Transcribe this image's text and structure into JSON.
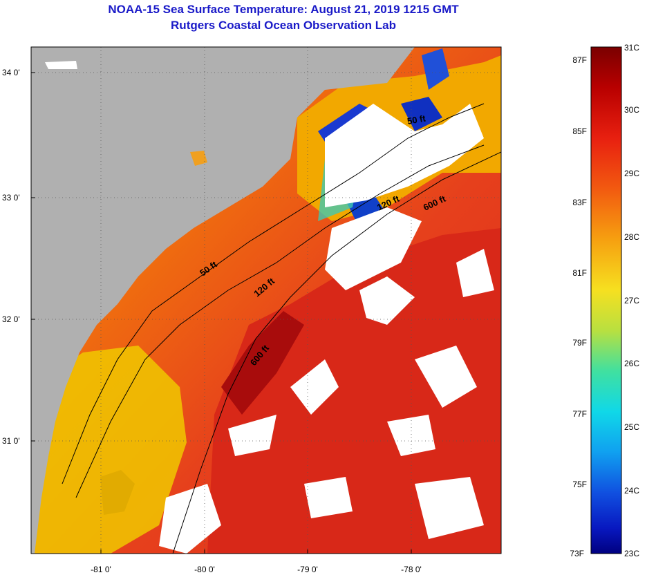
{
  "header": {
    "title": "NOAA-15 Sea Surface Temperature:  August 21, 2019 1215 GMT",
    "subtitle": "Rutgers Coastal Ocean Observation Lab"
  },
  "map": {
    "lat_ticks": [
      "34 0'",
      "33 0'",
      "32 0'",
      "31 0'"
    ],
    "lon_ticks": [
      "-81 0'",
      "-80 0'",
      "-79 0'",
      "-78 0'"
    ],
    "contour_labels": [
      "50 ft",
      "120 ft",
      "600 ft",
      "50 ft",
      "120 ft",
      "600 ft"
    ]
  },
  "colorbar": {
    "fahrenheit": [
      "87F",
      "85F",
      "83F",
      "81F",
      "79F",
      "77F",
      "75F",
      "73F"
    ],
    "celsius": [
      "31C",
      "30C",
      "29C",
      "28C",
      "27C",
      "26C",
      "25C",
      "24C",
      "23C"
    ]
  },
  "colors": {
    "land": "#b0b0b0",
    "cloud": "#ffffff",
    "title": "#1a1ac8"
  }
}
